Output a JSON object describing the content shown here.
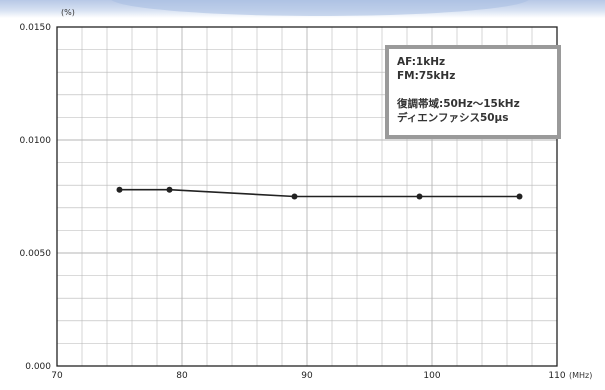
{
  "chart_data": {
    "type": "line",
    "y_unit": "(%)",
    "x_unit": "(MHz)",
    "xlim": [
      70,
      110
    ],
    "ylim": [
      0.0,
      0.015
    ],
    "x_ticks": [
      "70",
      "80",
      "90",
      "100",
      "110"
    ],
    "y_ticks": [
      "0.000",
      "0.0050",
      "0.0100",
      "0.0150"
    ],
    "grid": true,
    "series": [
      {
        "x": [
          75,
          79,
          89,
          99,
          107
        ],
        "y": [
          0.0078,
          0.0078,
          0.0075,
          0.0075,
          0.0075
        ]
      }
    ],
    "annotation": {
      "lines": [
        "AF:1kHz",
        "FM:75kHz",
        "",
        "復調帯域:50Hz〜15kHz",
        "ディエンファシス50μs"
      ]
    },
    "colors": {
      "line": "#222222",
      "grid": "#b5b5b5",
      "frame": "#222222",
      "annotation_border": "#9a9a9a"
    }
  }
}
